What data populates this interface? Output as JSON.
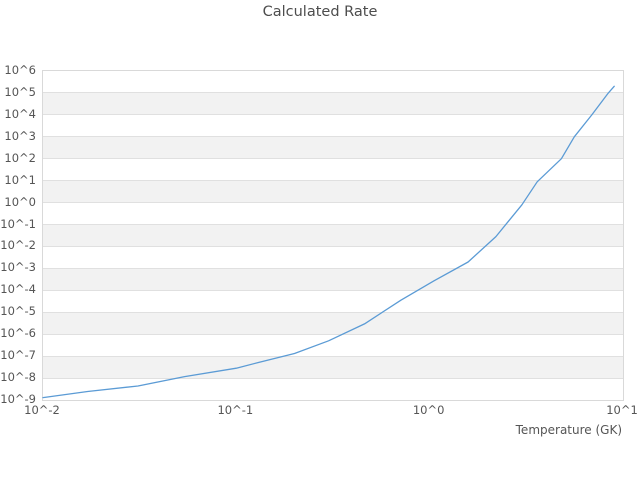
{
  "colors": {
    "line": "#5b9bd5",
    "band_gray": "#f2f2f2",
    "band_white": "#ffffff",
    "gridline": "#e0e0e0",
    "plot_border": "#d9d9d9",
    "text": "#555555",
    "title_text": "#4d4d4d"
  },
  "chart_data": {
    "type": "line",
    "title": "Calculated Rate",
    "xlabel": "Temperature (GK)",
    "ylabel": "",
    "x_scale": "log",
    "y_scale": "log",
    "xlim": [
      0.01,
      10
    ],
    "ylim": [
      1e-09,
      1000000.0
    ],
    "x_ticks": [
      "10^-2",
      "10^-1",
      "10^0",
      "10^1"
    ],
    "y_ticks": [
      "10^6",
      "10^5",
      "10^4",
      "10^3",
      "10^2",
      "10^1",
      "10^0",
      "10^-1",
      "10^-2",
      "10^-3",
      "10^-4",
      "10^-5",
      "10^-6",
      "10^-7",
      "10^-8",
      "10^-9"
    ],
    "grid": "horizontal-only",
    "legend": "none",
    "series": [
      {
        "name": "calculated-rate",
        "color": "#5b9bd5",
        "points": [
          [
            0.01,
            1.29e-09
          ],
          [
            0.017,
            2.45e-09
          ],
          [
            0.031,
            4.37e-09
          ],
          [
            0.054,
            1.17e-08
          ],
          [
            0.1,
            2.82e-08
          ],
          [
            0.13,
            5.13e-08
          ],
          [
            0.2,
            1.32e-07
          ],
          [
            0.3,
            5.01e-07
          ],
          [
            0.46,
            2.95e-06
          ],
          [
            0.71,
            3.55e-05
          ],
          [
            1.05,
            0.000269
          ],
          [
            1.58,
            0.00195
          ],
          [
            2.2,
            0.0282
          ],
          [
            3.0,
            0.79
          ],
          [
            3.6,
            8.9
          ],
          [
            4.8,
            100.0
          ],
          [
            5.6,
            1000.0
          ],
          [
            6.9,
            10000.0
          ],
          [
            8.4,
            100000.0
          ],
          [
            9.0,
            200000.0
          ]
        ]
      }
    ]
  }
}
